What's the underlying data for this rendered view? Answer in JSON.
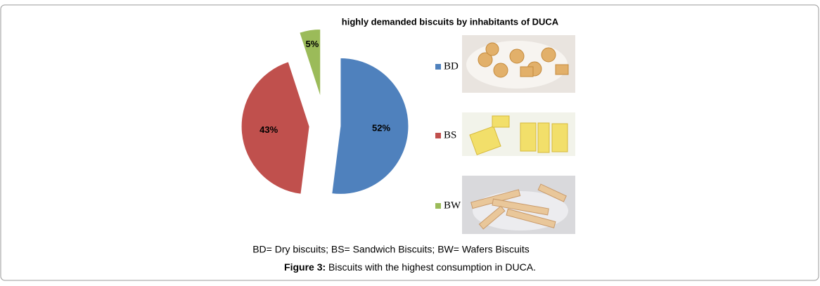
{
  "chart_data": {
    "type": "pie",
    "title": "highly demanded biscuits by inhabitants of DUCA",
    "categories": [
      "BD",
      "BS",
      "BW"
    ],
    "values": [
      52,
      43,
      5
    ],
    "value_labels": [
      "52%",
      "43%",
      "5%"
    ],
    "colors": [
      "#4f81bd",
      "#c0504d",
      "#9bbb59"
    ],
    "note": "BD= Dry biscuits; BS= Sandwich Biscuits; BW= Wafers Biscuits",
    "caption_label": "Figure 3:",
    "caption_text": "Biscuits with the highest consumption in DUCA."
  }
}
